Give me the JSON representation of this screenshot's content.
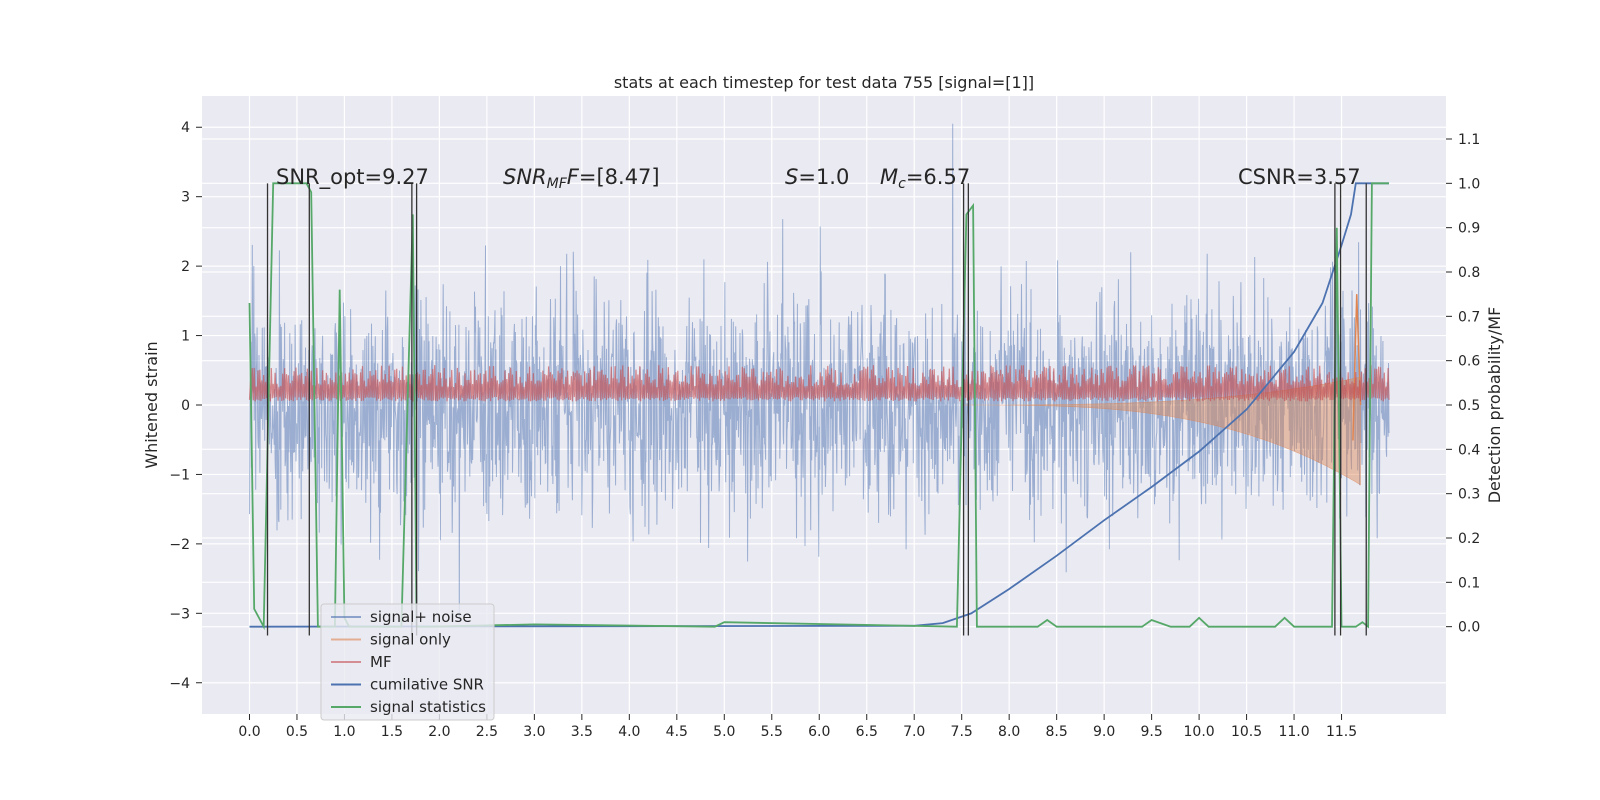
{
  "chart_data": {
    "type": "line",
    "title": "stats at each timestep for test data 755 [signal=[1]]",
    "xlabel": "",
    "ylabel": "Whitened strain",
    "y2label": "Detection probability/MF",
    "xlim": [
      -0.5,
      12.6
    ],
    "ylim": [
      -4.45,
      4.45
    ],
    "y2lim": [
      -0.197,
      1.197
    ],
    "x_ticks": [
      "0.0",
      "0.5",
      "1.0",
      "1.5",
      "2.0",
      "2.5",
      "3.0",
      "3.5",
      "4.0",
      "4.5",
      "5.0",
      "5.5",
      "6.0",
      "6.5",
      "7.0",
      "7.5",
      "8.0",
      "8.5",
      "9.0",
      "9.5",
      "10.0",
      "10.5",
      "11.0",
      "11.5"
    ],
    "y_ticks": [
      "4",
      "3",
      "2",
      "1",
      "0",
      "−1",
      "−2",
      "−3",
      "−4"
    ],
    "y2_ticks": [
      "1.1",
      "1.0",
      "0.9",
      "0.8",
      "0.7",
      "0.6",
      "0.5",
      "0.4",
      "0.3",
      "0.2",
      "0.1",
      "0.0"
    ],
    "grid": true,
    "legend_position": "lower-left",
    "annotations": {
      "snr_opt": "SNR_opt=9.27",
      "snr_mf_main": "SNR",
      "snr_mf_sub": "MF",
      "snr_mf_rest": "=[8.47]",
      "s_sym": "S",
      "s_rest": "=1.0",
      "mc_main": "M",
      "mc_sub": "c",
      "mc_rest": "=6.57",
      "csnr": "CSNR=3.57"
    },
    "series": [
      {
        "name": "signal+ noise",
        "color": "#4c72b0",
        "amplitude_envelope": 2.0,
        "x_range": [
          0.0,
          12.0
        ]
      },
      {
        "name": "signal only",
        "color": "#dd8452",
        "chirp_onset": 7.5,
        "chirp_end": 11.7,
        "peak": 0.75
      },
      {
        "name": "MF",
        "color": "#c44e52",
        "baseline": 0.22,
        "noise": 0.1
      },
      {
        "name": "cumilative SNR",
        "color": "#4c72b0",
        "x": [
          0.0,
          7.0,
          7.3,
          7.6,
          8.0,
          8.5,
          9.0,
          9.5,
          10.0,
          10.5,
          11.0,
          11.3,
          11.5,
          11.6,
          11.65,
          12.0
        ],
        "y": [
          0.0,
          0.002,
          0.008,
          0.03,
          0.085,
          0.16,
          0.24,
          0.315,
          0.395,
          0.49,
          0.62,
          0.73,
          0.86,
          0.93,
          1.0,
          1.0
        ]
      },
      {
        "name": "signal statistics",
        "color": "#55a868",
        "x": [
          0.0,
          0.05,
          0.15,
          0.25,
          0.3,
          0.6,
          0.65,
          0.72,
          0.8,
          0.9,
          0.95,
          1.0,
          1.05,
          1.1,
          1.2,
          1.6,
          1.72,
          1.76,
          1.8,
          1.9,
          3.0,
          4.9,
          5.0,
          7.45,
          7.55,
          7.62,
          7.66,
          7.7,
          8.3,
          8.4,
          8.5,
          9.4,
          9.5,
          9.7,
          9.9,
          10.0,
          10.1,
          10.8,
          10.9,
          11.0,
          11.4,
          11.45,
          11.5,
          11.55,
          11.65,
          11.72,
          11.78,
          11.82,
          11.87,
          12.0
        ],
        "y": [
          0.73,
          0.04,
          0.0,
          1.0,
          1.0,
          1.0,
          0.98,
          0.0,
          0.0,
          0.0,
          0.76,
          0.02,
          0.0,
          0.0,
          0.0,
          0.0,
          0.93,
          0.0,
          0.0,
          0.0,
          0.005,
          0.0,
          0.01,
          0.0,
          0.93,
          0.95,
          0.0,
          0.0,
          0.0,
          0.015,
          0.0,
          0.0,
          0.015,
          0.0,
          0.0,
          0.02,
          0.0,
          0.0,
          0.02,
          0.0,
          0.0,
          0.9,
          0.0,
          0.0,
          0.0,
          0.01,
          0.0,
          1.0,
          1.0,
          1.0
        ]
      }
    ],
    "event_markers_x": [
      0.19,
      0.63,
      1.71,
      1.76,
      7.52,
      7.57,
      11.43,
      11.49,
      11.76
    ]
  }
}
